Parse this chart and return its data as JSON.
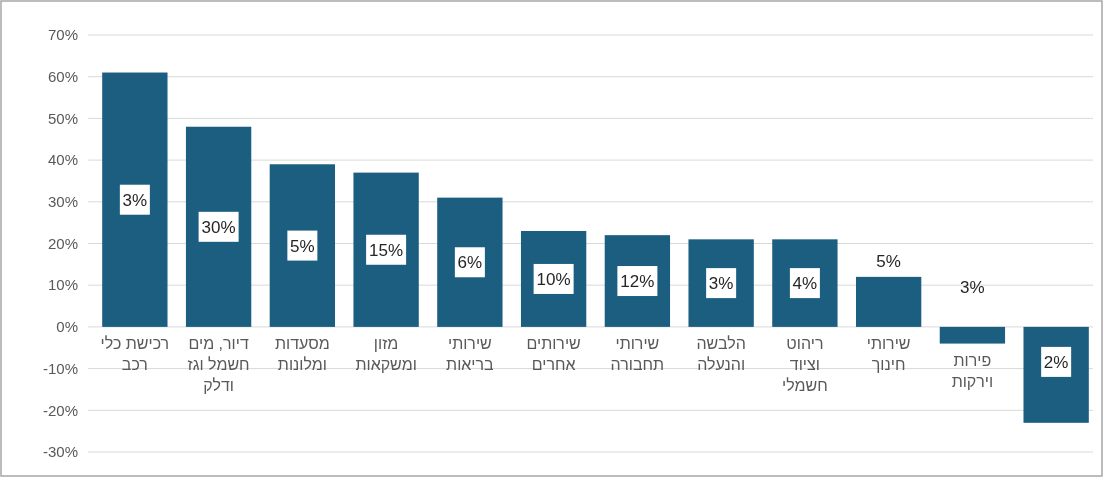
{
  "chart_data": {
    "type": "bar",
    "categories": [
      "רכישת כלי רכב",
      "דיור, מים חשמל וגז ודלק",
      "מסעדות ומלונות",
      "מזון ומשקאות",
      "שירותי בריאות",
      "שירותים אחרים",
      "שירותי תחבורה",
      "הלבשה והנעלה",
      "ריהוט וציוד חשמלי",
      "שירותי חינוך",
      "פירות וירקות",
      null
    ],
    "values": [
      61,
      48,
      39,
      37,
      31,
      23,
      22,
      21,
      21,
      12,
      -4,
      -23
    ],
    "annotations": [
      "3%",
      "30%",
      "5%",
      "15%",
      "6%",
      "10%",
      "12%",
      "3%",
      "4%",
      "5%",
      "3%",
      "2%"
    ],
    "color": "#1b5e80",
    "ylim": [
      -30,
      70
    ],
    "yticks": [
      {
        "value": -30,
        "label": "-30%"
      },
      {
        "value": -20,
        "label": "-20%"
      },
      {
        "value": -10,
        "label": "-10%"
      },
      {
        "value": 0,
        "label": "0%"
      },
      {
        "value": 10,
        "label": "10%"
      },
      {
        "value": 20,
        "label": "20%"
      },
      {
        "value": 30,
        "label": "30%"
      },
      {
        "value": 40,
        "label": "40%"
      },
      {
        "value": 50,
        "label": "50%"
      },
      {
        "value": 60,
        "label": "60%"
      },
      {
        "value": 70,
        "label": "70%"
      }
    ],
    "grid": "y"
  }
}
